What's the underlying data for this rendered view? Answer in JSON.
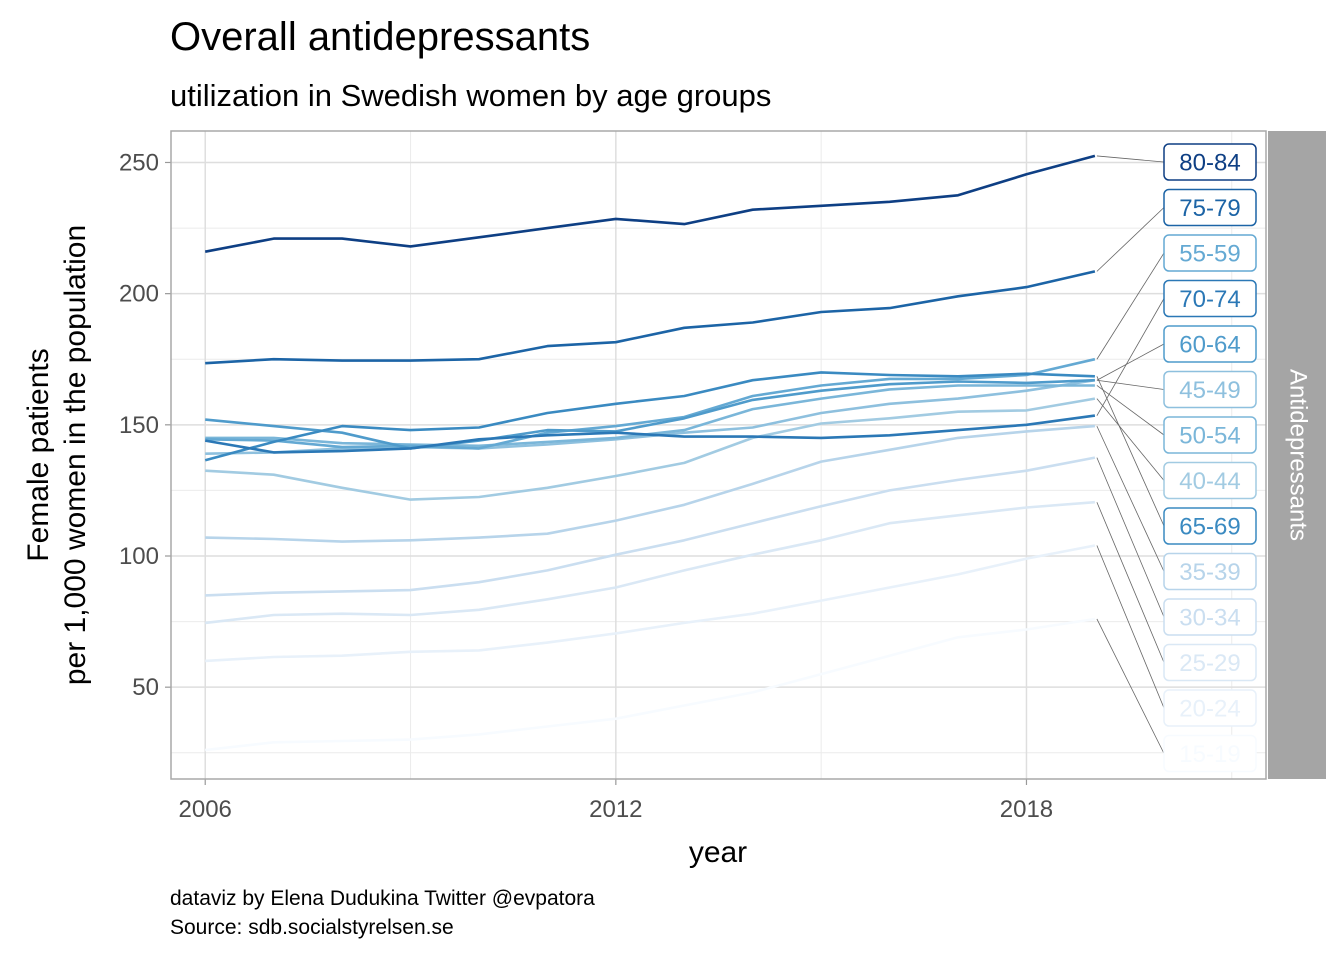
{
  "chart_data": {
    "type": "line",
    "title": "Overall antidepressants",
    "subtitle": "utilization in Swedish women by age groups",
    "xlabel": "year",
    "ylabel_line1": "Female patients",
    "ylabel_line2": "per 1,000 women in the population",
    "facet_label": "Antidepressants",
    "caption_line1": "dataviz by Elena Dudukina Twitter @evpatora",
    "caption_line2": "Source: sdb.socialstyrelsen.se",
    "xlim": [
      2005.5,
      2021.5
    ],
    "ylim": [
      15,
      262
    ],
    "x_ticks": [
      2006,
      2012,
      2018
    ],
    "y_ticks": [
      50,
      100,
      150,
      200,
      250
    ],
    "grid": true,
    "legend": "direct labels at right",
    "x": [
      2006,
      2007,
      2008,
      2009,
      2010,
      2011,
      2012,
      2013,
      2014,
      2015,
      2016,
      2017,
      2018,
      2019
    ],
    "series": [
      {
        "name": "15-19",
        "color": "#f7fbff",
        "values": [
          26,
          29,
          29.5,
          30,
          32,
          35,
          38,
          43,
          48,
          55,
          62,
          69,
          72,
          76
        ]
      },
      {
        "name": "20-24",
        "color": "#e8f1fa",
        "values": [
          60,
          61.5,
          62,
          63.5,
          64,
          67,
          70.5,
          74.5,
          78,
          83,
          88,
          93,
          99,
          104
        ]
      },
      {
        "name": "25-29",
        "color": "#dae8f5",
        "values": [
          74.5,
          77.5,
          78,
          77.5,
          79.5,
          83.5,
          88,
          94.5,
          100.5,
          106,
          112.5,
          115.5,
          118.5,
          120.5
        ]
      },
      {
        "name": "30-34",
        "color": "#cadef0",
        "values": [
          85,
          86,
          86.5,
          87,
          90,
          94.5,
          100.5,
          106,
          112.5,
          119,
          125,
          129,
          132.5,
          137.5
        ]
      },
      {
        "name": "35-39",
        "color": "#b7d4ea",
        "values": [
          107,
          106.5,
          105.5,
          106,
          107,
          108.5,
          113.5,
          119.5,
          127.5,
          136,
          140.5,
          145,
          147.5,
          149.5
        ]
      },
      {
        "name": "40-44",
        "color": "#a2cbe2",
        "values": [
          132.5,
          131,
          126,
          121.5,
          122.5,
          126,
          130.5,
          135.5,
          145,
          150.5,
          152.5,
          155,
          155.5,
          160
        ]
      },
      {
        "name": "45-49",
        "color": "#8ec0de",
        "values": [
          139,
          139.5,
          141,
          141.5,
          141,
          142.5,
          144.5,
          147,
          149,
          154.5,
          158,
          160,
          163,
          167
        ]
      },
      {
        "name": "50-54",
        "color": "#7ab6d9",
        "values": [
          145,
          145,
          143,
          142.5,
          142,
          143.5,
          145,
          148,
          156,
          160,
          163.5,
          165,
          165,
          165
        ]
      },
      {
        "name": "55-59",
        "color": "#64a9d3",
        "values": [
          144.5,
          144,
          141.5,
          142,
          141,
          147,
          149.5,
          153,
          161,
          165,
          167.5,
          167.5,
          169,
          175
        ]
      },
      {
        "name": "60-64",
        "color": "#4f9bcb",
        "values": [
          152,
          149.5,
          147,
          141,
          144,
          148,
          147.5,
          152.5,
          159.5,
          163,
          165.5,
          166.5,
          166,
          167
        ]
      },
      {
        "name": "65-69",
        "color": "#3a8ac1",
        "values": [
          136.5,
          143.5,
          149.5,
          148,
          149,
          154.5,
          158,
          161,
          167,
          170,
          169,
          168.5,
          169.5,
          168.5
        ]
      },
      {
        "name": "70-74",
        "color": "#2b78b6",
        "values": [
          144,
          139.5,
          140,
          141,
          144.5,
          146,
          147,
          145.5,
          145.5,
          145,
          146,
          148,
          150,
          153.5
        ]
      },
      {
        "name": "75-79",
        "color": "#1c64a6",
        "values": [
          173.5,
          175,
          174.5,
          174.5,
          175,
          180,
          181.5,
          187,
          189,
          193,
          194.5,
          199,
          202.5,
          208.5
        ]
      },
      {
        "name": "80-84",
        "color": "#0e3f84",
        "values": [
          216,
          221,
          221,
          218,
          221.5,
          225,
          228.5,
          226.5,
          232,
          233.5,
          235,
          237.5,
          245.5,
          252.5
        ]
      }
    ],
    "label_order": [
      "80-84",
      "75-79",
      "55-59",
      "70-74",
      "60-64",
      "45-49",
      "50-54",
      "40-44",
      "65-69",
      "35-39",
      "30-34",
      "25-29",
      "20-24",
      "15-19"
    ]
  }
}
